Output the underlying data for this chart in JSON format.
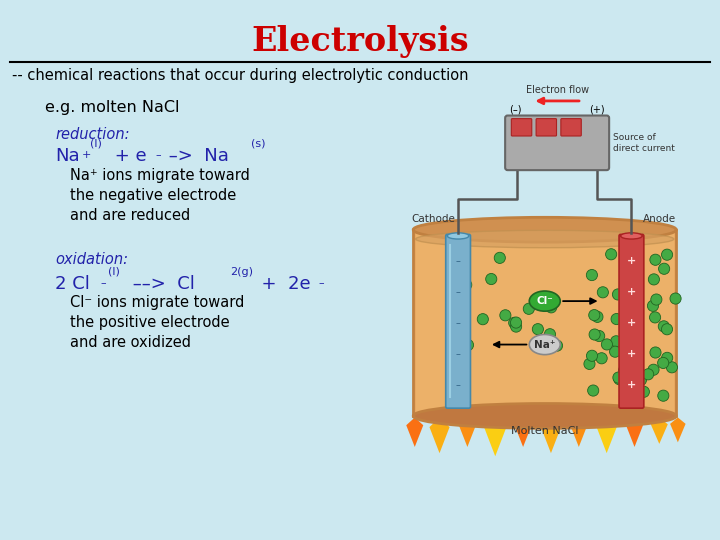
{
  "title": "Electrolysis",
  "title_color": "#CC0000",
  "bg_color": "#cce8f0",
  "subtitle": "-- chemical reactions that occur during electrolytic conduction",
  "subtitle_color": "#000000",
  "eg_label": "e.g. molten NaCl",
  "eg_color": "#000000",
  "reduction_label": "reduction:",
  "reduction_color": "#2222aa",
  "reduction_desc": [
    "Na⁺ ions migrate toward",
    "the negative electrode",
    "and are reduced"
  ],
  "reduction_desc_color": "#000000",
  "oxidation_label": "oxidation:",
  "oxidation_color": "#2222aa",
  "oxidation_desc": [
    "Cl⁻ ions migrate toward",
    "the positive electrode",
    "and are oxidized"
  ],
  "oxidation_desc_color": "#000000",
  "line_color": "#000000",
  "cathode_color": "#7ab0cc",
  "cathode_edge": "#4488aa",
  "anode_color": "#cc4444",
  "anode_edge": "#aa2222",
  "beaker_fill": "#e8a860",
  "beaker_edge": "#c08040",
  "battery_fill": "#aaaaaa",
  "battery_edge": "#666666",
  "green_ion_fill": "#44aa44",
  "green_ion_edge": "#226622",
  "gray_ion_fill": "#cccccc",
  "gray_ion_edge": "#888888",
  "flame_colors": [
    "#ff6600",
    "#ffaa00",
    "#ff8800",
    "#ffcc00"
  ],
  "wire_color": "#555555",
  "electron_arrow_color": "#ee2222",
  "label_color": "#333333"
}
